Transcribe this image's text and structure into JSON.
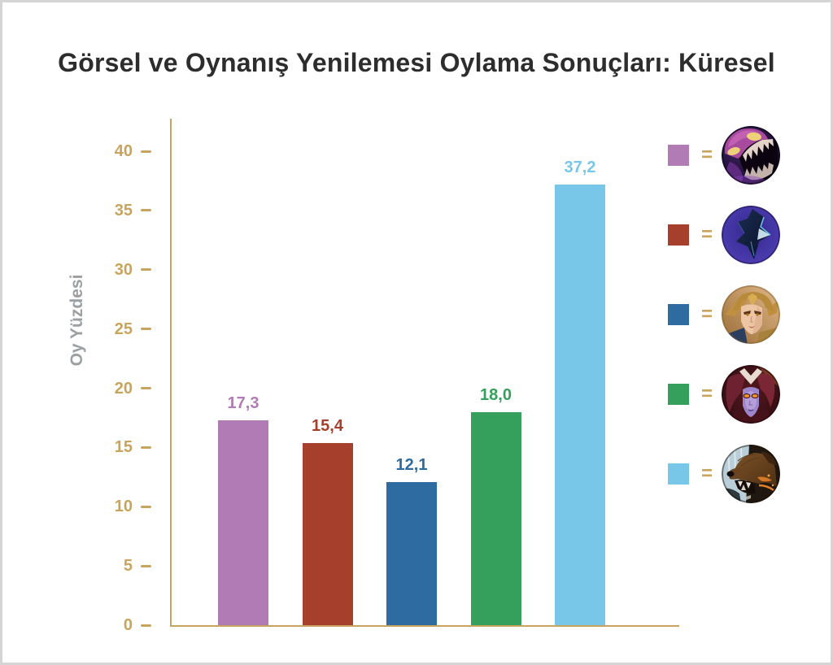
{
  "title": "Görsel ve Oynanış Yenilemesi Oylama Sonuçları: Küresel",
  "chart_data": {
    "type": "bar",
    "title": "Görsel ve Oynanış Yenilemesi Oylama Sonuçları: Küresel",
    "xlabel": "",
    "ylabel": "Oy Yüzdesi",
    "ylim": [
      0,
      40
    ],
    "yticks": [
      0,
      5,
      10,
      15,
      20,
      25,
      30,
      35,
      40
    ],
    "grid": false,
    "legend_position": "right",
    "categories": [
      "Skarner",
      "Nocturne",
      "Quinn",
      "Shyvana",
      "Udyr"
    ],
    "values": [
      17.3,
      15.4,
      12.1,
      18.0,
      37.2
    ],
    "value_labels": [
      "17,3",
      "15,4",
      "12,1",
      "18,0",
      "37,2"
    ],
    "bar_colors": [
      "#B17CB5",
      "#A6402D",
      "#2D6BA0",
      "#34A05C",
      "#78C7E8"
    ]
  },
  "style": {
    "axis_color": "#C7A45F",
    "tick_label_color": "#C9A45C",
    "ylabel_color": "#9CA0A3",
    "title_color": "#2D2D2D",
    "frame_border_color": "#D5D5D5",
    "background": "#FFFFFF"
  },
  "legend": {
    "equals_sign": "=",
    "equals_color": "#C9A45C",
    "items": [
      {
        "color": "#B17CB5",
        "icon": "skarner-icon"
      },
      {
        "color": "#A6402D",
        "icon": "nocturne-icon"
      },
      {
        "color": "#2D6BA0",
        "icon": "quinn-icon"
      },
      {
        "color": "#34A05C",
        "icon": "shyvana-icon"
      },
      {
        "color": "#78C7E8",
        "icon": "udyr-icon"
      }
    ]
  }
}
